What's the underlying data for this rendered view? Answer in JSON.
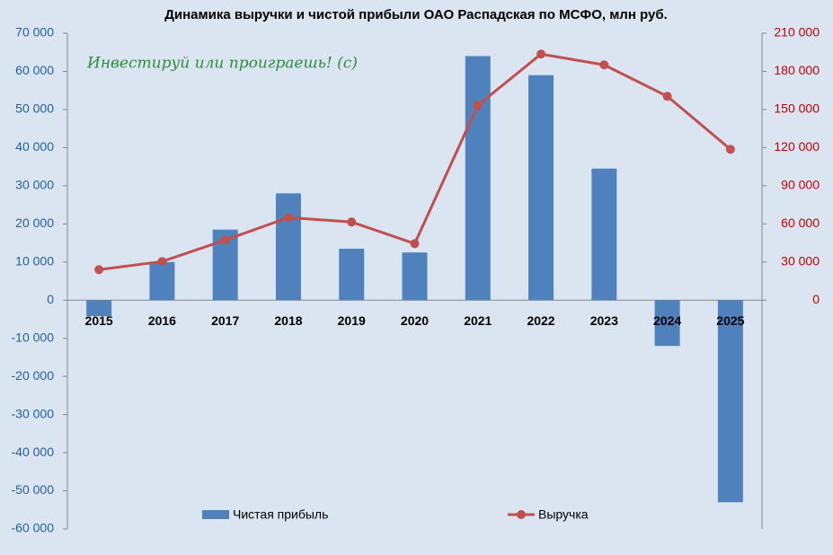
{
  "chart_data": {
    "type": "bar",
    "title": "Динамика выручки и чистой прибыли ОАО Распадская по МСФО, млн руб.",
    "annotation": "Инвестируй или проиграешь! (с)",
    "categories": [
      "2015",
      "2016",
      "2017",
      "2018",
      "2019",
      "2020",
      "2021",
      "2022",
      "2023",
      "2024",
      "2025"
    ],
    "series": [
      {
        "name": "Чистая прибыль",
        "type": "bar",
        "color": "#4f81bd",
        "values": [
          -4200,
          10000,
          18500,
          28000,
          13500,
          12500,
          64000,
          59000,
          34500,
          -12000,
          -53000
        ]
      },
      {
        "name": "Выручка",
        "type": "line",
        "axis": "y2",
        "color": "#c0504d",
        "values": [
          24000,
          30400,
          47300,
          65000,
          61500,
          44500,
          153300,
          193600,
          185100,
          160400,
          118700
        ]
      }
    ],
    "ylim": [
      -60000,
      70000
    ],
    "yticks": [
      {
        "value": -60000,
        "label": "-60 000"
      },
      {
        "value": -50000,
        "label": "-50 000"
      },
      {
        "value": -40000,
        "label": "-40 000"
      },
      {
        "value": -30000,
        "label": "-30 000"
      },
      {
        "value": -20000,
        "label": "-20 000"
      },
      {
        "value": -10000,
        "label": "-10 000"
      },
      0,
      {
        "value": 10000,
        "label": "10 000"
      },
      {
        "value": 20000,
        "label": "20 000"
      },
      {
        "value": 30000,
        "label": "30 000"
      },
      {
        "value": 40000,
        "label": "40 000"
      },
      {
        "value": 50000,
        "label": "50 000"
      },
      {
        "value": 60000,
        "label": "60 000"
      },
      {
        "value": 70000,
        "label": "70 000"
      }
    ],
    "y2lim": [
      -180000,
      210000
    ],
    "y2ticks": [
      0,
      {
        "value": 30000,
        "label": "30 000"
      },
      {
        "value": 60000,
        "label": "60 000"
      },
      {
        "value": 90000,
        "label": "90 000"
      },
      {
        "value": 120000,
        "label": "120 000"
      },
      {
        "value": 150000,
        "label": "150 000"
      },
      {
        "value": 180000,
        "label": "180 000"
      },
      {
        "value": 210000,
        "label": "210 000"
      }
    ],
    "grid": false
  }
}
